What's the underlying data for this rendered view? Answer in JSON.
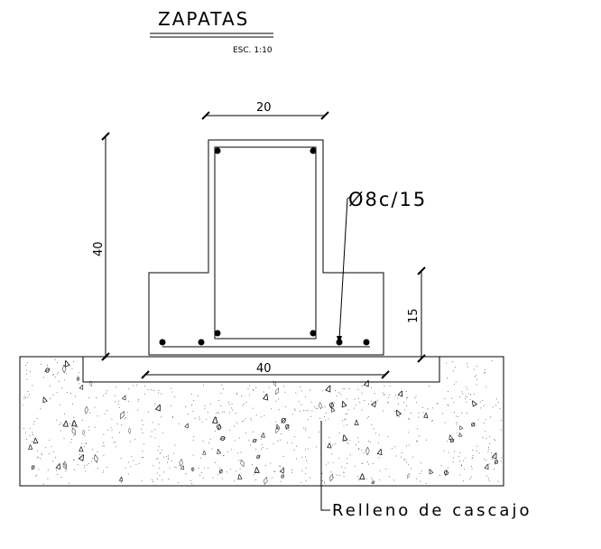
{
  "title": "ZAPATAS",
  "scale": "ESC. 1:10",
  "dimensions": {
    "column_width": "20",
    "total_height": "40",
    "footing_height": "15",
    "footing_width": "40"
  },
  "rebar_label": "Ø8c/15",
  "fill_label": "Relleno de cascajo",
  "stipple_symbols": [
    "Δ",
    "∆",
    "ø",
    "◊"
  ]
}
